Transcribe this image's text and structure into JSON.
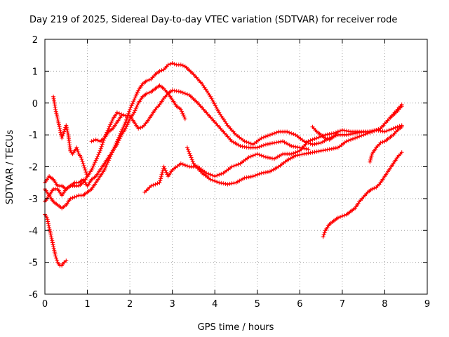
{
  "chart_data": {
    "type": "scatter",
    "title": "Day 219 of 2025, Sidereal Day-to-day VTEC variation (SDTVAR) for receiver rode",
    "xlabel": "GPS time / hours",
    "ylabel": "SDTVAR / TECUs",
    "xlim": [
      0,
      9
    ],
    "ylim": [
      -6,
      2
    ],
    "xticks": [
      "0",
      "1",
      "2",
      "3",
      "4",
      "5",
      "6",
      "7",
      "8",
      "9"
    ],
    "yticks": [
      "-6",
      "-5",
      "-4",
      "-3",
      "-2",
      "-1",
      "0",
      "1",
      "2"
    ],
    "grid": true,
    "marker": "+",
    "color": "#ff0000",
    "series": [
      {
        "name": "s1",
        "x": [
          0.0,
          0.1,
          0.2,
          0.3,
          0.4,
          0.5,
          0.6,
          0.7,
          0.8,
          0.9,
          1.0,
          1.1,
          1.2,
          1.3,
          1.4,
          1.5,
          1.6,
          1.7,
          1.8,
          1.9,
          2.0,
          2.1,
          2.2,
          2.3,
          2.4,
          2.5,
          2.6,
          2.7,
          2.8,
          2.9,
          3.0,
          3.1,
          3.2,
          3.3
        ],
        "y": [
          -3.1,
          -2.9,
          -2.7,
          -2.7,
          -2.9,
          -2.7,
          -2.6,
          -2.5,
          -2.5,
          -2.4,
          -2.6,
          -2.4,
          -2.3,
          -2.1,
          -1.9,
          -1.7,
          -1.5,
          -1.3,
          -1.0,
          -0.8,
          -0.5,
          -0.3,
          0.0,
          0.2,
          0.3,
          0.35,
          0.45,
          0.55,
          0.45,
          0.3,
          0.1,
          -0.1,
          -0.2,
          -0.5
        ]
      },
      {
        "name": "s2",
        "x": [
          0.0,
          0.1,
          0.2,
          0.3,
          0.4,
          0.5,
          0.6,
          0.7,
          0.8,
          0.9,
          1.0,
          1.1,
          1.2,
          1.3,
          1.4,
          1.5,
          1.6,
          1.7,
          1.8,
          1.9,
          2.0,
          2.1,
          2.2,
          2.3,
          2.4,
          2.5,
          2.6,
          2.7,
          2.8,
          2.9,
          3.0,
          3.2,
          3.4,
          3.6,
          3.8,
          4.0,
          4.2,
          4.4,
          4.6,
          4.8,
          5.0,
          5.2,
          5.4,
          5.6,
          5.8,
          6.0,
          6.2
        ],
        "y": [
          -2.5,
          -2.3,
          -2.4,
          -2.6,
          -2.6,
          -2.7,
          -2.6,
          -2.6,
          -2.6,
          -2.5,
          -2.3,
          -2.1,
          -1.8,
          -1.5,
          -1.1,
          -0.8,
          -0.5,
          -0.3,
          -0.35,
          -0.4,
          -0.4,
          -0.6,
          -0.8,
          -0.75,
          -0.6,
          -0.4,
          -0.2,
          -0.05,
          0.15,
          0.3,
          0.4,
          0.35,
          0.25,
          0.0,
          -0.3,
          -0.6,
          -0.9,
          -1.2,
          -1.35,
          -1.4,
          -1.4,
          -1.3,
          -1.25,
          -1.2,
          -1.35,
          -1.4,
          -1.45
        ]
      },
      {
        "name": "s3",
        "x": [
          0.0,
          0.1,
          0.2,
          0.3,
          0.4,
          0.5,
          0.6,
          0.7,
          0.8,
          0.9,
          1.0,
          1.1,
          1.2,
          1.3,
          1.4,
          1.5,
          1.6,
          1.7,
          1.8,
          1.9,
          2.0,
          2.1,
          2.2,
          2.3,
          2.4,
          2.5,
          2.6,
          2.7,
          2.8,
          2.9,
          3.0,
          3.1,
          3.2,
          3.3,
          3.5,
          3.7,
          3.9,
          4.1,
          4.3,
          4.5,
          4.7,
          4.9,
          5.1,
          5.3,
          5.5,
          5.7,
          5.9,
          6.1,
          6.3,
          6.5,
          6.7,
          6.9,
          7.1,
          7.3,
          7.5,
          7.7,
          7.9,
          8.1,
          8.3,
          8.4
        ],
        "y": [
          -2.7,
          -2.9,
          -3.1,
          -3.2,
          -3.3,
          -3.2,
          -3.0,
          -2.95,
          -2.9,
          -2.9,
          -2.8,
          -2.7,
          -2.5,
          -2.3,
          -2.1,
          -1.8,
          -1.5,
          -1.2,
          -0.9,
          -0.6,
          -0.2,
          0.1,
          0.4,
          0.6,
          0.7,
          0.75,
          0.9,
          1.0,
          1.05,
          1.2,
          1.25,
          1.2,
          1.2,
          1.15,
          0.9,
          0.6,
          0.2,
          -0.3,
          -0.7,
          -1.0,
          -1.2,
          -1.3,
          -1.1,
          -1.0,
          -0.9,
          -0.9,
          -1.0,
          -1.2,
          -1.3,
          -1.25,
          -1.1,
          -1.0,
          -1.0,
          -0.95,
          -0.9,
          -0.9,
          -0.8,
          -0.5,
          -0.2,
          -0.05
        ]
      },
      {
        "name": "s4",
        "x": [
          2.35,
          2.5,
          2.7,
          2.8,
          2.9,
          3.0,
          3.2,
          3.4,
          3.6,
          3.8,
          4.0,
          4.2,
          4.4,
          4.6,
          4.8,
          5.0,
          5.2,
          5.4,
          5.6,
          5.8,
          6.0,
          6.2,
          6.4,
          6.6,
          6.8,
          7.0,
          7.2,
          7.4,
          7.6,
          7.8,
          8.0,
          8.2,
          8.4
        ],
        "y": [
          -2.8,
          -2.6,
          -2.5,
          -2.0,
          -2.3,
          -2.1,
          -1.9,
          -2.0,
          -2.0,
          -2.2,
          -2.3,
          -2.2,
          -2.0,
          -1.9,
          -1.7,
          -1.6,
          -1.7,
          -1.75,
          -1.6,
          -1.6,
          -1.5,
          -1.2,
          -1.1,
          -1.0,
          -0.95,
          -0.85,
          -0.9,
          -0.9,
          -0.9,
          -0.85,
          -0.9,
          -0.8,
          -0.7
        ]
      },
      {
        "name": "s5",
        "x": [
          3.35,
          3.5,
          3.7,
          3.9,
          4.1,
          4.3,
          4.5,
          4.7,
          4.9,
          5.1,
          5.3,
          5.5,
          5.7,
          5.9,
          6.1,
          6.3,
          6.5,
          6.7,
          6.9,
          7.1,
          7.3,
          7.5,
          7.7,
          7.9,
          8.1,
          8.3,
          8.4
        ],
        "y": [
          -1.4,
          -1.9,
          -2.2,
          -2.4,
          -2.5,
          -2.55,
          -2.5,
          -2.35,
          -2.3,
          -2.2,
          -2.15,
          -2.0,
          -1.8,
          -1.65,
          -1.6,
          -1.55,
          -1.5,
          -1.45,
          -1.4,
          -1.2,
          -1.1,
          -1.0,
          -0.9,
          -0.8,
          -0.5,
          -0.25,
          -0.1
        ]
      },
      {
        "name": "s6",
        "x": [
          0.0,
          0.05,
          0.1,
          0.15,
          0.2,
          0.25,
          0.3,
          0.35,
          0.4,
          0.45,
          0.5
        ],
        "y": [
          -3.5,
          -3.6,
          -3.9,
          -4.2,
          -4.5,
          -4.8,
          -5.0,
          -5.1,
          -5.1,
          -5.0,
          -4.95
        ]
      },
      {
        "name": "s7",
        "x": [
          0.2,
          0.25,
          0.3,
          0.35,
          0.4,
          0.45,
          0.5,
          0.55,
          0.6,
          0.65,
          0.7,
          0.75,
          0.8,
          0.85,
          0.9,
          0.95,
          1.0
        ],
        "y": [
          0.2,
          -0.2,
          -0.5,
          -0.8,
          -1.1,
          -0.9,
          -0.7,
          -1.0,
          -1.5,
          -1.6,
          -1.5,
          -1.4,
          -1.6,
          -1.7,
          -1.9,
          -2.1,
          -2.3
        ]
      },
      {
        "name": "s8",
        "x": [
          1.1,
          1.2,
          1.3,
          1.4,
          1.5,
          1.6,
          1.7,
          1.8
        ],
        "y": [
          -1.2,
          -1.15,
          -1.2,
          -1.1,
          -0.9,
          -0.8,
          -0.6,
          -0.4
        ]
      },
      {
        "name": "s9",
        "x": [
          6.55,
          6.6,
          6.7,
          6.8,
          6.9,
          7.0,
          7.1,
          7.2,
          7.3,
          7.4,
          7.5,
          7.6,
          7.7,
          7.8,
          7.9,
          8.0,
          8.1,
          8.2,
          8.3,
          8.4
        ],
        "y": [
          -4.2,
          -4.0,
          -3.8,
          -3.7,
          -3.6,
          -3.55,
          -3.5,
          -3.4,
          -3.3,
          -3.1,
          -2.95,
          -2.8,
          -2.7,
          -2.65,
          -2.5,
          -2.3,
          -2.1,
          -1.9,
          -1.7,
          -1.55
        ]
      },
      {
        "name": "s10",
        "x": [
          7.65,
          7.7,
          7.8,
          7.9,
          8.0,
          8.1,
          8.2,
          8.3,
          8.4
        ],
        "y": [
          -1.85,
          -1.6,
          -1.4,
          -1.25,
          -1.2,
          -1.1,
          -1.0,
          -0.85,
          -0.75
        ]
      },
      {
        "name": "s11",
        "x": [
          6.3,
          6.4,
          6.5,
          6.6,
          6.7,
          6.8,
          6.9
        ],
        "y": [
          -0.75,
          -0.9,
          -1.0,
          -1.1,
          -1.15,
          -1.05,
          -0.9
        ]
      }
    ]
  }
}
